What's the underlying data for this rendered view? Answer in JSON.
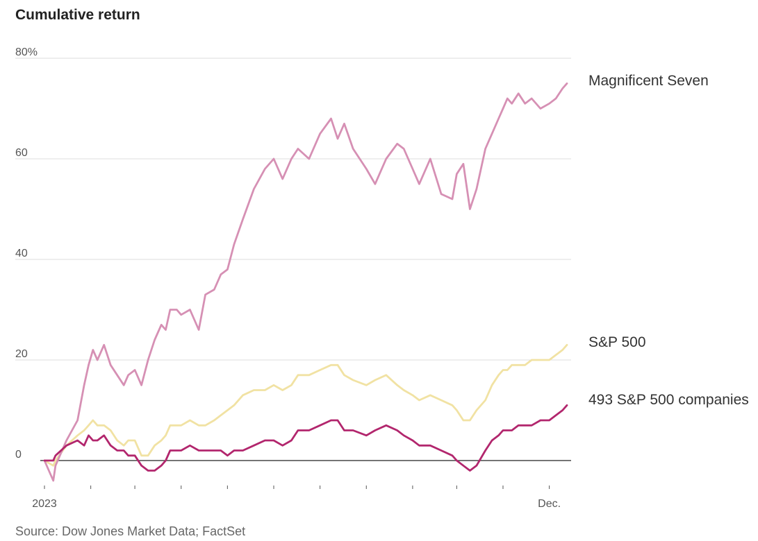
{
  "chart_data": {
    "type": "line",
    "title": "Cumulative return",
    "source": "Source: Dow Jones Market Data; FactSet",
    "ylabel": "",
    "ylim": [
      -5,
      80
    ],
    "yticks": [
      {
        "value": 80,
        "label": "80%"
      },
      {
        "value": 60,
        "label": "60"
      },
      {
        "value": 40,
        "label": "40"
      },
      {
        "value": 20,
        "label": "20"
      },
      {
        "value": 0,
        "label": "0"
      }
    ],
    "xlim": [
      0,
      237
    ],
    "xtick_positions": [
      0,
      21,
      41,
      62,
      83,
      104,
      125,
      146,
      167,
      187,
      208,
      229
    ],
    "xtick_labels": [
      {
        "index": 0,
        "label": "2023"
      },
      {
        "index": 229,
        "label": "Dec."
      }
    ],
    "x": [
      0,
      4,
      5,
      10,
      15,
      18,
      20,
      22,
      24,
      27,
      30,
      33,
      36,
      38,
      41,
      44,
      47,
      50,
      53,
      55,
      57,
      60,
      62,
      66,
      70,
      73,
      77,
      80,
      83,
      86,
      90,
      95,
      100,
      104,
      108,
      112,
      115,
      120,
      125,
      130,
      133,
      136,
      140,
      146,
      150,
      155,
      160,
      163,
      167,
      170,
      175,
      180,
      185,
      187,
      190,
      193,
      196,
      200,
      203,
      206,
      208,
      210,
      212,
      215,
      218,
      221,
      225,
      229,
      232,
      235,
      237
    ],
    "series": [
      {
        "name": "Magnificent Seven",
        "color": "#d690b4",
        "values": [
          0,
          -4,
          -1,
          4,
          8,
          15,
          19,
          22,
          20,
          23,
          19,
          17,
          15,
          17,
          18,
          15,
          20,
          24,
          27,
          26,
          30,
          30,
          29,
          30,
          26,
          33,
          34,
          37,
          38,
          43,
          48,
          54,
          58,
          60,
          56,
          60,
          62,
          60,
          65,
          68,
          64,
          67,
          62,
          58,
          55,
          60,
          63,
          62,
          58,
          55,
          60,
          53,
          52,
          57,
          59,
          50,
          54,
          62,
          65,
          68,
          70,
          72,
          71,
          73,
          71,
          72,
          70,
          71,
          72,
          74,
          75
        ]
      },
      {
        "name": "S&P 500",
        "color": "#f1e2a3",
        "values": [
          0,
          -1,
          0,
          3,
          5,
          6,
          7,
          8,
          7,
          7,
          6,
          4,
          3,
          4,
          4,
          1,
          1,
          3,
          4,
          5,
          7,
          7,
          7,
          8,
          7,
          7,
          8,
          9,
          10,
          11,
          13,
          14,
          14,
          15,
          14,
          15,
          17,
          17,
          18,
          19,
          19,
          17,
          16,
          15,
          16,
          17,
          15,
          14,
          13,
          12,
          13,
          12,
          11,
          10,
          8,
          8,
          10,
          12,
          15,
          17,
          18,
          18,
          19,
          19,
          19,
          20,
          20,
          20,
          21,
          22,
          23
        ]
      },
      {
        "name": "493 S&P 500 companies",
        "color": "#b2266d",
        "values": [
          0,
          0,
          1,
          3,
          4,
          3,
          5,
          4,
          4,
          5,
          3,
          2,
          2,
          1,
          1,
          -1,
          -2,
          -2,
          -1,
          0,
          2,
          2,
          2,
          3,
          2,
          2,
          2,
          2,
          1,
          2,
          2,
          3,
          4,
          4,
          3,
          4,
          6,
          6,
          7,
          8,
          8,
          6,
          6,
          5,
          6,
          7,
          6,
          5,
          4,
          3,
          3,
          2,
          1,
          0,
          -1,
          -2,
          -1,
          2,
          4,
          5,
          6,
          6,
          6,
          7,
          7,
          7,
          8,
          8,
          9,
          10,
          11
        ]
      }
    ]
  }
}
